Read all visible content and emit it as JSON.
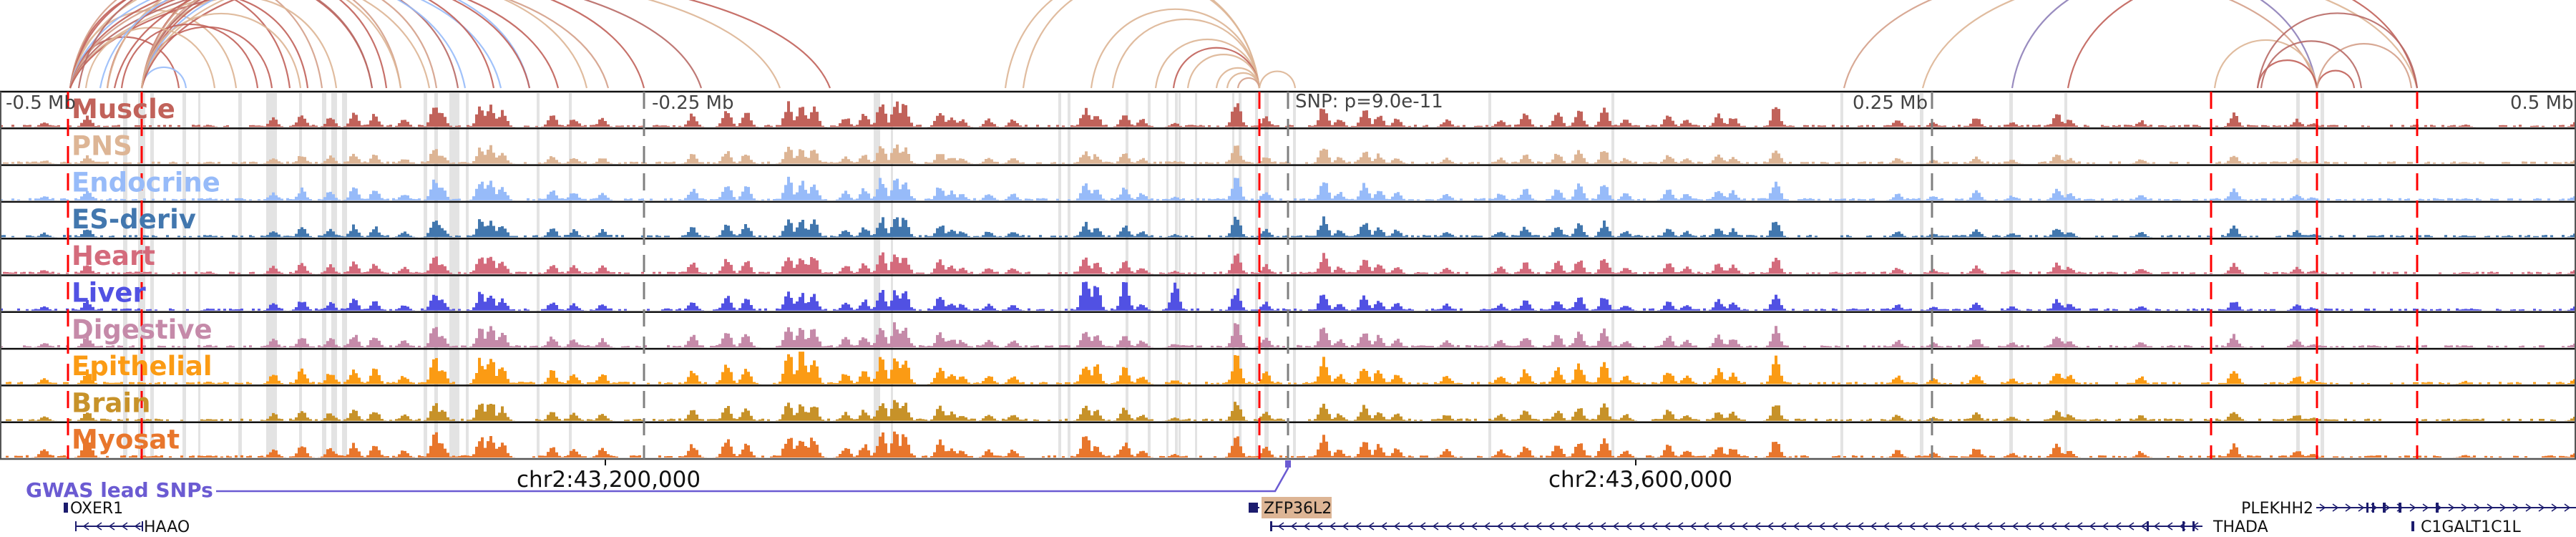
{
  "window": {
    "snp_annotation": "SNP: p=9.0e-11",
    "axis_labels": [
      "-0.5 Mb",
      "-0.25 Mb",
      "0.25 Mb",
      "0.5 Mb"
    ],
    "axis_label_offsets_mb": [
      -0.5,
      -0.25,
      0.25,
      0.5
    ],
    "coordinate_labels": [
      "chr2:43,200,000",
      "chr2:43,600,000"
    ]
  },
  "colors": {
    "arc_palette": [
      "#c1625a",
      "#ddb595",
      "#97bbf9",
      "#d4a08a",
      "#b86a66",
      "#8e7fb8"
    ],
    "red_marker": "#ff0000",
    "gray_marker": "#808080",
    "highlight": "#e3e3e3",
    "gene": "#1c1c6e",
    "gwas": "#6b5bd2",
    "gene_highlight_bg": "#ddb595"
  },
  "tracks": [
    {
      "name": "Muscle",
      "color": "#c1625a"
    },
    {
      "name": "PNS",
      "color": "#ddb595"
    },
    {
      "name": "Endocrine",
      "color": "#97bbf9"
    },
    {
      "name": "ES-deriv",
      "color": "#4277ae"
    },
    {
      "name": "Heart",
      "color": "#d46b7c"
    },
    {
      "name": "Liver",
      "color": "#5151e3"
    },
    {
      "name": "Digestive",
      "color": "#c58aa9"
    },
    {
      "name": "Epithelial",
      "color": "#fb9b14"
    },
    {
      "name": "Brain",
      "color": "#c79229"
    },
    {
      "name": "Myosat",
      "color": "#e8762c"
    }
  ],
  "gwas": {
    "label": "GWAS lead SNPs"
  },
  "genes": [
    {
      "name": "OXER1",
      "strand": "none",
      "highlighted": false
    },
    {
      "name": "HAAO",
      "strand": "-",
      "highlighted": false
    },
    {
      "name": "ZFP36L2",
      "strand": "-",
      "highlighted": true
    },
    {
      "name": "THADA",
      "strand": "-",
      "highlighted": false
    },
    {
      "name": "PLEKHH2",
      "strand": "+",
      "highlighted": false
    },
    {
      "name": "C1GALT1C1L",
      "strand": "none",
      "highlighted": false
    }
  ]
}
